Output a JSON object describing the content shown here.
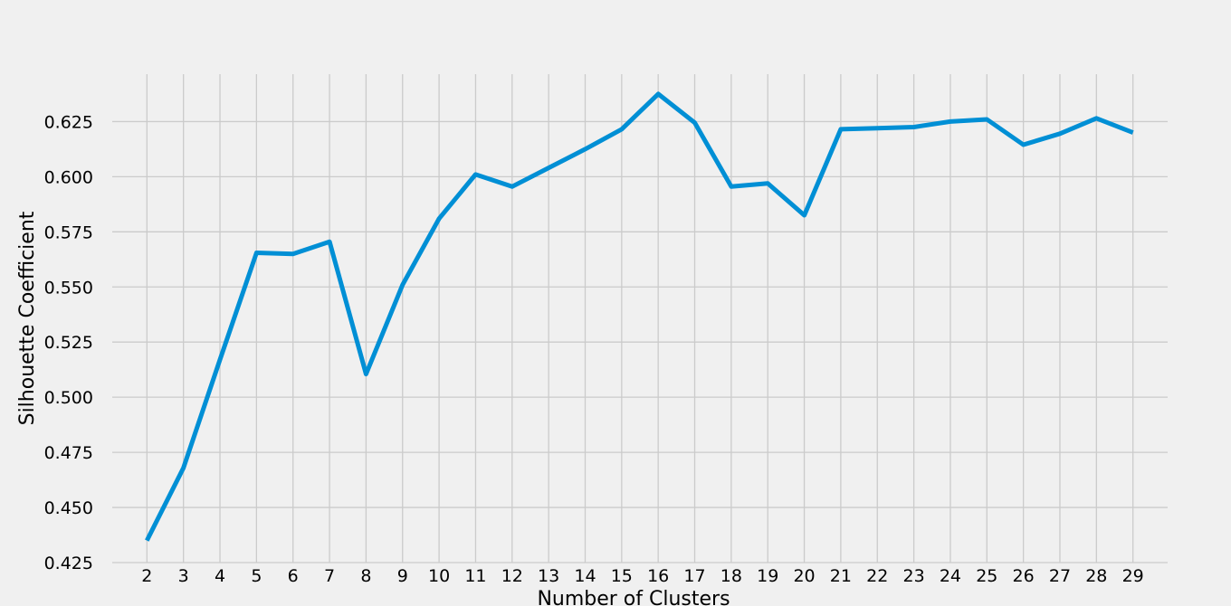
{
  "chart_data": {
    "type": "line",
    "xlabel": "Number of Clusters",
    "ylabel": "Silhouette Coefficient",
    "x": [
      2,
      3,
      4,
      5,
      6,
      7,
      8,
      9,
      10,
      11,
      12,
      13,
      14,
      15,
      16,
      17,
      18,
      19,
      20,
      21,
      22,
      23,
      24,
      25,
      26,
      27,
      28,
      29
    ],
    "series": [
      {
        "values": [
          0.435,
          0.468,
          0.517,
          0.5655,
          0.565,
          0.5705,
          0.5105,
          0.551,
          0.581,
          0.601,
          0.5955,
          0.604,
          0.6125,
          0.6215,
          0.6375,
          0.6245,
          0.5955,
          0.597,
          0.5825,
          0.6215,
          0.622,
          0.6225,
          0.625,
          0.626,
          0.6145,
          0.6195,
          0.6265,
          0.62
        ],
        "color": "#008fd5"
      }
    ],
    "xticks": [
      "2",
      "3",
      "4",
      "5",
      "6",
      "7",
      "8",
      "9",
      "10",
      "11",
      "12",
      "13",
      "14",
      "15",
      "16",
      "17",
      "18",
      "19",
      "20",
      "21",
      "22",
      "23",
      "24",
      "25",
      "26",
      "27",
      "28",
      "29"
    ],
    "yticks": [
      "0.425",
      "0.450",
      "0.475",
      "0.500",
      "0.525",
      "0.550",
      "0.575",
      "0.600",
      "0.625"
    ],
    "ylim": [
      0.425,
      0.6465
    ],
    "xlim": [
      1.05,
      29.95
    ],
    "grid": true,
    "colors": {
      "background": "#f0f0f0",
      "grid": "#cbcbcb",
      "line": "#008fd5"
    }
  }
}
